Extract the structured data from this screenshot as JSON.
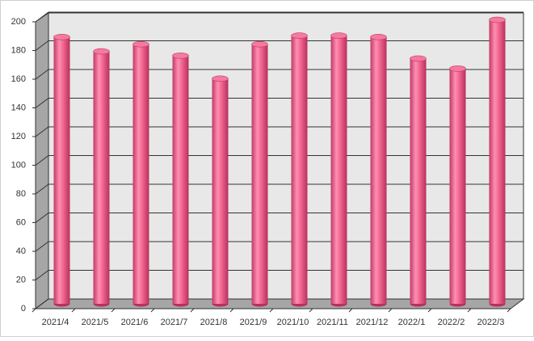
{
  "chart_data": {
    "type": "bar3d",
    "categories": [
      "2021/4",
      "2021/5",
      "2021/6",
      "2021/7",
      "2021/8",
      "2021/9",
      "2021/10",
      "2021/11",
      "2021/12",
      "2022/1",
      "2022/2",
      "2022/3"
    ],
    "values": [
      186,
      176,
      181,
      173,
      157,
      181,
      187,
      187,
      186,
      171,
      164,
      198
    ],
    "color": "#f0648f",
    "ylim": [
      0,
      200
    ],
    "yticks": [
      0,
      20,
      40,
      60,
      80,
      100,
      120,
      140,
      160,
      180,
      200
    ],
    "grid": true
  }
}
